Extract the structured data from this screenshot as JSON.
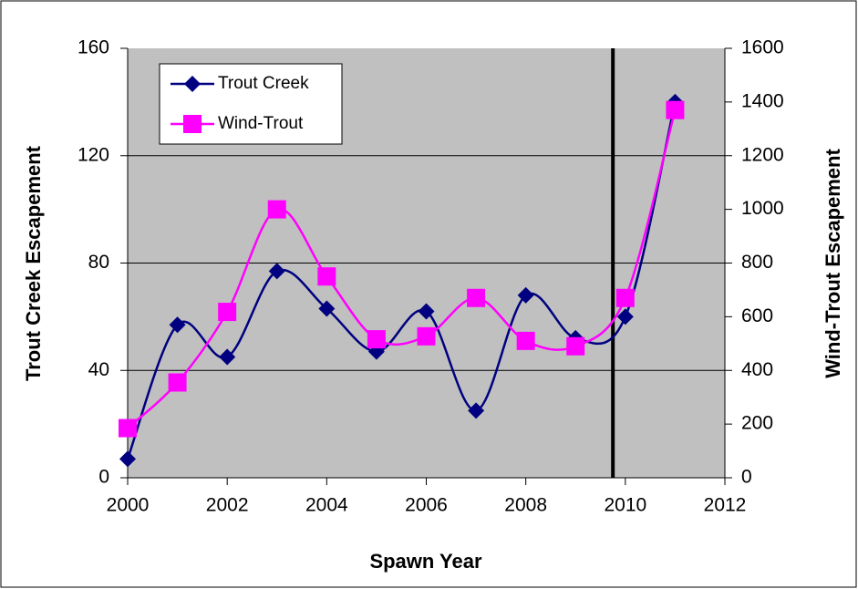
{
  "chart_data": {
    "type": "line",
    "x": [
      2000,
      2001,
      2002,
      2003,
      2004,
      2005,
      2006,
      2007,
      2008,
      2009,
      2010,
      2011
    ],
    "series": [
      {
        "name": "Trout Creek",
        "color": "#000080",
        "marker": "diamond",
        "values": [
          7,
          57,
          45,
          77,
          63,
          47,
          62,
          25,
          68,
          52,
          60,
          140
        ]
      },
      {
        "name": "Wind-Trout",
        "color": "#ff00ff",
        "marker": "square",
        "axis": "y2",
        "values": [
          185,
          355,
          618,
          1000,
          750,
          516,
          527,
          670,
          510,
          490,
          670,
          1370
        ]
      }
    ],
    "xlabel": "Spawn Year",
    "ylabel": "Trout Creek Escapement",
    "y2label": "Wind-Trout  Escapement",
    "xlim": [
      2000,
      2012
    ],
    "xticks": [
      2000,
      2002,
      2004,
      2006,
      2008,
      2010,
      2012
    ],
    "ylim": [
      0,
      160
    ],
    "yticks": [
      0,
      40,
      80,
      120,
      160
    ],
    "y2lim": [
      0,
      1600
    ],
    "y2ticks": [
      0,
      200,
      400,
      600,
      800,
      1000,
      1200,
      1400,
      1600
    ],
    "vertical_line": 2009.75,
    "grid": true,
    "legend": "upper left",
    "smooth": true,
    "plot_background": "#c0c0c0"
  }
}
